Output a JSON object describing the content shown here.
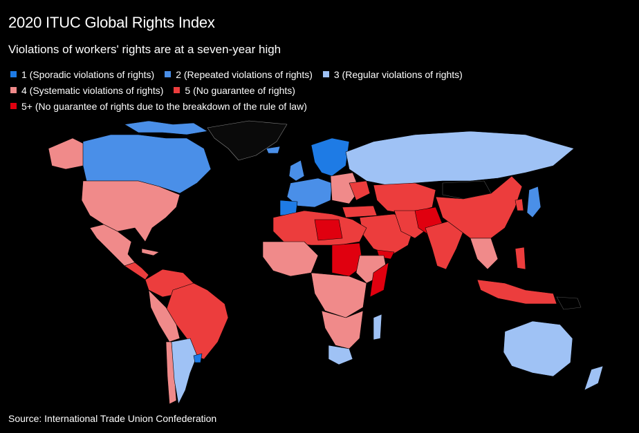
{
  "title": "2020 ITUC Global Rights Index",
  "subtitle": "Violations of workers' rights are at a seven-year high",
  "legend": [
    {
      "label": "1 (Sporadic violations of rights)",
      "color": "#1E7BE5"
    },
    {
      "label": "2 (Repeated violations of rights)",
      "color": "#4A8FE8"
    },
    {
      "label": "3 (Regular violations of rights)",
      "color": "#9FC2F5"
    },
    {
      "label": "4 (Systematic violations of rights)",
      "color": "#F08A8A"
    },
    {
      "label": "5 (No guarantee of rights)",
      "color": "#EC3D3D"
    },
    {
      "label": "5+ (No guarantee of rights due to the breakdown of the rule of law)",
      "color": "#E0000F"
    }
  ],
  "source": "Source: International Trade Union Confederation",
  "colors": {
    "background": "#000000",
    "nodata": "#000000",
    "border": "#ffffff"
  }
}
